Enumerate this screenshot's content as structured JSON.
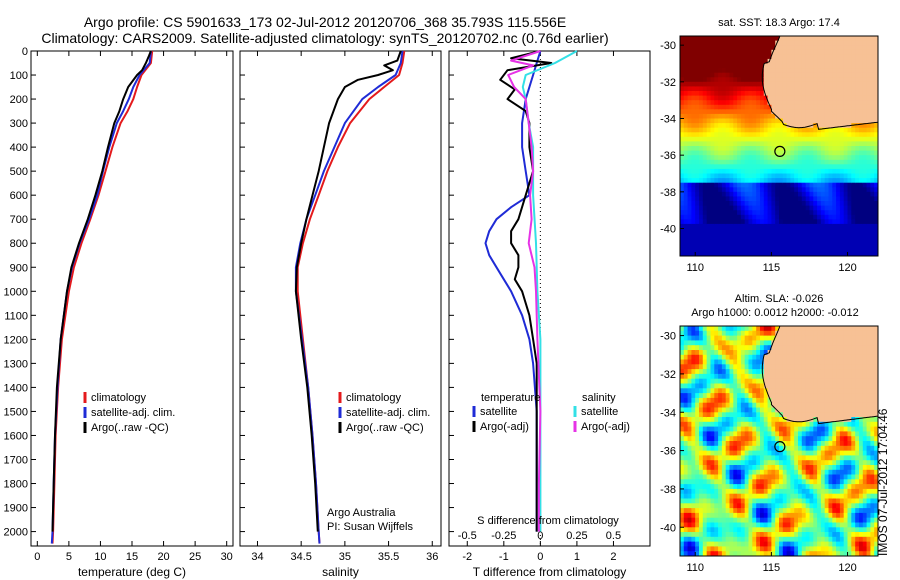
{
  "header": {
    "line1": "Argo profile: CS 5901633_173 02-Jul-2012 20120706_368 35.793S 115.556E",
    "line2": "Climatology: CARS2009. Satellite-adjusted climatology: synTS_20120702.nc (0.76d earlier)"
  },
  "colors": {
    "climatology": "#e41a1c",
    "satellite": "#1f2bd6",
    "argo": "#000000",
    "satellite_salinity": "#33e0e6",
    "argo_salinity": "#e633e6",
    "land": "#f7c195"
  },
  "chart_data": [
    {
      "id": "temperature",
      "type": "line",
      "xlabel": "temperature (deg C)",
      "ylabel": "",
      "xlim": [
        -1,
        31
      ],
      "ylim": [
        0,
        2060
      ],
      "xticks": [
        "0",
        "5",
        "10",
        "15",
        "20",
        "25",
        "30"
      ],
      "xtick_values": [
        0,
        5,
        10,
        15,
        20,
        25,
        30
      ],
      "yticks": [
        "0",
        "100",
        "200",
        "300",
        "400",
        "500",
        "600",
        "700",
        "800",
        "900",
        "1000",
        "1100",
        "1200",
        "1300",
        "1400",
        "1500",
        "1600",
        "1700",
        "1800",
        "1900",
        "2000"
      ],
      "ytick_values": [
        0,
        100,
        200,
        300,
        400,
        500,
        600,
        700,
        800,
        900,
        1000,
        1100,
        1200,
        1300,
        1400,
        1500,
        1600,
        1700,
        1800,
        1900,
        2000
      ],
      "legend": [
        "climatology",
        "satellite-adj. clim.",
        "Argo(..raw -QC)"
      ],
      "series": [
        {
          "name": "climatology",
          "color": "#e41a1c",
          "depth": [
            0,
            50,
            100,
            150,
            200,
            250,
            300,
            400,
            500,
            600,
            700,
            800,
            900,
            1000,
            1200,
            1400,
            1600,
            1800,
            2000,
            2050
          ],
          "values": [
            18.2,
            18.0,
            16.5,
            15.8,
            15.2,
            14.3,
            13.2,
            11.9,
            10.8,
            9.7,
            8.4,
            7.0,
            5.8,
            5.0,
            3.9,
            3.3,
            2.9,
            2.7,
            2.5,
            2.4
          ]
        },
        {
          "name": "satellite-adj. clim.",
          "color": "#1f2bd6",
          "depth": [
            0,
            50,
            100,
            150,
            200,
            250,
            300,
            400,
            500,
            600,
            700,
            800,
            900,
            1000,
            1200,
            1400,
            1600,
            1800,
            2000,
            2050
          ],
          "values": [
            18.0,
            17.8,
            16.2,
            15.2,
            14.5,
            13.6,
            12.6,
            11.4,
            10.4,
            9.5,
            8.2,
            6.7,
            5.5,
            4.7,
            3.7,
            3.2,
            2.8,
            2.6,
            2.4,
            2.3
          ]
        },
        {
          "name": "Argo(..raw -QC)",
          "color": "#000000",
          "depth": [
            0,
            20,
            50,
            80,
            100,
            150,
            200,
            250,
            300,
            400,
            500,
            600,
            700,
            800,
            900,
            1000,
            1200,
            1400,
            1600,
            1800,
            2000
          ],
          "values": [
            18.0,
            17.7,
            17.2,
            16.6,
            15.8,
            14.4,
            13.6,
            13.0,
            12.2,
            11.2,
            10.3,
            9.2,
            8.0,
            6.6,
            5.4,
            4.7,
            3.7,
            3.1,
            2.8,
            2.6,
            2.4
          ]
        }
      ]
    },
    {
      "id": "salinity",
      "type": "line",
      "xlabel": "salinity",
      "ylabel": "",
      "xlim": [
        33.8,
        36.1
      ],
      "ylim": [
        0,
        2060
      ],
      "xticks": [
        "34",
        "34.5",
        "35",
        "35.5",
        "36"
      ],
      "xtick_values": [
        34,
        34.5,
        35,
        35.5,
        36
      ],
      "legend": [
        "climatology",
        "satellite-adj. clim.",
        "Argo(..raw -QC)"
      ],
      "annotations": [
        "Argo Australia",
        "PI: Susan Wijffels"
      ],
      "series": [
        {
          "name": "climatology",
          "color": "#e41a1c",
          "depth": [
            0,
            50,
            100,
            150,
            200,
            300,
            400,
            500,
            600,
            700,
            800,
            900,
            1000,
            1200,
            1400,
            1600,
            1800,
            2000,
            2050
          ],
          "values": [
            35.68,
            35.66,
            35.62,
            35.45,
            35.28,
            35.06,
            34.92,
            34.8,
            34.7,
            34.6,
            34.52,
            34.46,
            34.46,
            34.52,
            34.58,
            34.63,
            34.67,
            34.7,
            34.71
          ]
        },
        {
          "name": "satellite-adj. clim.",
          "color": "#1f2bd6",
          "depth": [
            0,
            50,
            100,
            150,
            200,
            300,
            400,
            500,
            600,
            700,
            800,
            900,
            1000,
            1200,
            1400,
            1600,
            1800,
            2000,
            2050
          ],
          "values": [
            35.66,
            35.64,
            35.58,
            35.38,
            35.2,
            35.0,
            34.88,
            34.76,
            34.66,
            34.56,
            34.49,
            34.44,
            34.44,
            34.51,
            34.58,
            34.63,
            34.67,
            34.7,
            34.71
          ]
        },
        {
          "name": "Argo(..raw -QC)",
          "color": "#000000",
          "depth": [
            0,
            40,
            60,
            80,
            100,
            120,
            150,
            200,
            250,
            300,
            400,
            500,
            600,
            700,
            800,
            900,
            1000,
            1200,
            1400,
            1600,
            1800,
            2000
          ],
          "values": [
            35.64,
            35.6,
            35.45,
            35.55,
            35.38,
            35.15,
            35.0,
            34.92,
            34.87,
            34.82,
            34.76,
            34.7,
            34.63,
            34.56,
            34.5,
            34.45,
            34.44,
            34.5,
            34.57,
            34.62,
            34.66,
            34.69
          ]
        }
      ]
    },
    {
      "id": "differences",
      "type": "line",
      "xlabel": "T difference from climatology",
      "xlabel_top": "S difference from climatology",
      "xlim": [
        -2.5,
        3.0
      ],
      "ylim": [
        0,
        2060
      ],
      "xticks": [
        "-2",
        "-1",
        "0",
        "1",
        "2"
      ],
      "xtick_values": [
        -2,
        -1,
        0,
        1,
        2
      ],
      "s_ticks": [
        "-0.5",
        "-0.25",
        "0",
        "0.25",
        "0.5"
      ],
      "s_tick_values": [
        -0.5,
        -0.25,
        0,
        0.25,
        0.5
      ],
      "legend_temperature": {
        "title": "temperature",
        "items": [
          "satellite",
          "Argo(-adj)"
        ]
      },
      "legend_salinity": {
        "title": "salinity",
        "items": [
          "satellite",
          "Argo(-adj)"
        ]
      },
      "series": [
        {
          "name": "temperature satellite",
          "color": "#1f2bd6",
          "depth": [
            0,
            50,
            100,
            200,
            300,
            400,
            500,
            600,
            650,
            700,
            750,
            800,
            850,
            900,
            950,
            1000,
            1100,
            1200,
            1300,
            1500,
            1800,
            2000
          ],
          "values": [
            0.0,
            -0.1,
            -0.2,
            -0.4,
            -0.5,
            -0.5,
            -0.4,
            -0.3,
            -0.8,
            -1.2,
            -1.4,
            -1.5,
            -1.4,
            -1.2,
            -1.0,
            -0.8,
            -0.5,
            -0.3,
            -0.2,
            -0.1,
            -0.1,
            -0.1
          ]
        },
        {
          "name": "temperature Argo(-adj)",
          "color": "#000000",
          "depth": [
            0,
            30,
            50,
            80,
            120,
            160,
            200,
            250,
            300,
            400,
            500,
            600,
            700,
            750,
            800,
            850,
            900,
            950,
            1000,
            1100,
            1200,
            1300,
            1500,
            1800,
            2000
          ],
          "values": [
            0.0,
            -0.8,
            0.3,
            -0.9,
            -1.1,
            -0.7,
            -0.9,
            -0.4,
            -0.3,
            -0.3,
            -0.2,
            -0.4,
            -0.6,
            -0.8,
            -0.8,
            -0.6,
            -0.6,
            -0.7,
            -0.5,
            -0.3,
            -0.2,
            -0.1,
            -0.1,
            -0.1,
            -0.1
          ]
        },
        {
          "name": "salinity satellite",
          "color": "#33e0e6",
          "depth": [
            0,
            50,
            100,
            150,
            200,
            300,
            400,
            600,
            800,
            1000,
            1200,
            1500,
            1800,
            2000
          ],
          "values": [
            0.25,
            0.1,
            -0.1,
            -0.12,
            -0.1,
            -0.08,
            -0.05,
            -0.05,
            -0.03,
            -0.02,
            0.0,
            0.0,
            0.0,
            0.0
          ]
        },
        {
          "name": "salinity Argo(-adj)",
          "color": "#e633e6",
          "depth": [
            0,
            40,
            60,
            100,
            150,
            200,
            300,
            400,
            500,
            600,
            700,
            800,
            900,
            1000,
            1200,
            1500,
            1800,
            2000
          ],
          "values": [
            0.0,
            -0.2,
            -0.05,
            -0.22,
            -0.18,
            -0.1,
            -0.08,
            -0.06,
            -0.05,
            -0.07,
            -0.06,
            -0.08,
            -0.04,
            -0.03,
            -0.02,
            0.0,
            -0.01,
            -0.01
          ]
        }
      ]
    },
    {
      "id": "sst_map",
      "type": "heatmap",
      "title": "sat. SST: 18.3  Argo: 17.4",
      "xlim": [
        109,
        122
      ],
      "ylim": [
        -41.5,
        -29.5
      ],
      "xticks": [
        "110",
        "115",
        "120"
      ],
      "xtick_values": [
        110,
        115,
        120
      ],
      "yticks": [
        "-30",
        "-32",
        "-34",
        "-36",
        "-38",
        "-40"
      ],
      "ytick_values": [
        -30,
        -32,
        -34,
        -36,
        -38,
        -40
      ],
      "marker": {
        "lon": 115.556,
        "lat": -35.793
      }
    },
    {
      "id": "sla_map",
      "type": "heatmap",
      "title": "Altim. SLA: -0.026",
      "subtitle": "Argo h1000: 0.0012  h2000: -0.012",
      "xlim": [
        109,
        122
      ],
      "ylim": [
        -41.5,
        -29.5
      ],
      "xticks": [
        "110",
        "115",
        "120"
      ],
      "xtick_values": [
        110,
        115,
        120
      ],
      "yticks": [
        "-30",
        "-32",
        "-34",
        "-36",
        "-38",
        "-40"
      ],
      "ytick_values": [
        -30,
        -32,
        -34,
        -36,
        -38,
        -40
      ],
      "marker": {
        "lon": 115.556,
        "lat": -35.793
      }
    }
  ],
  "footer": {
    "side_label": "IMOS 07-Jul-2012 17:04:46"
  }
}
